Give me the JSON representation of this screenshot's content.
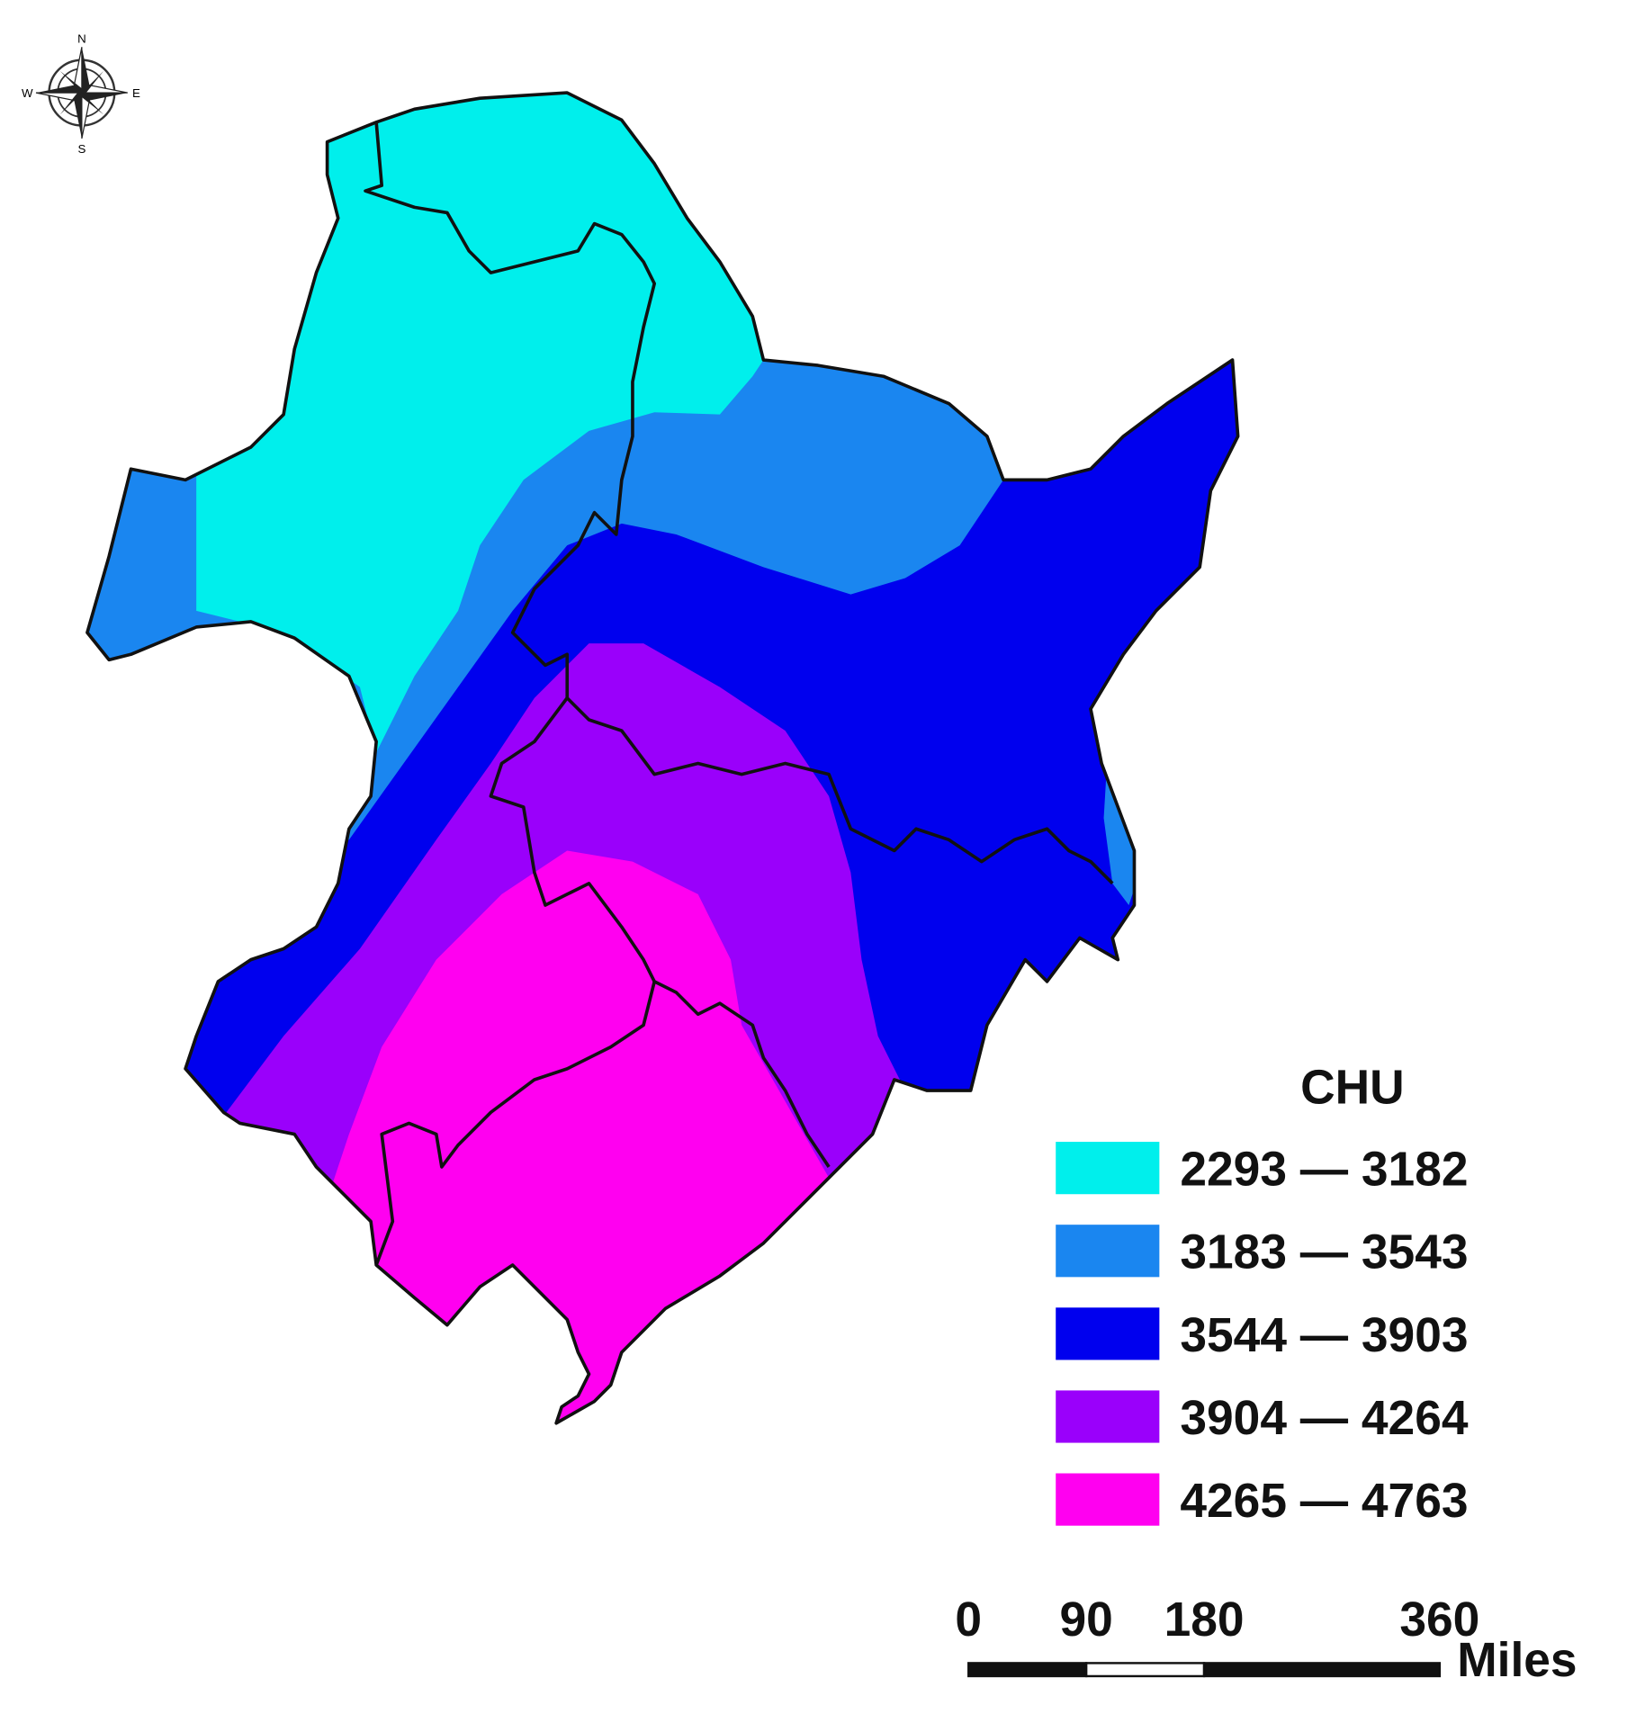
{
  "map": {
    "compass": {
      "north": "N",
      "south": "S",
      "east": "E",
      "west": "W"
    },
    "legend": {
      "title": "CHU",
      "items": [
        {
          "label": "2293 — 3182",
          "color": "#00efec"
        },
        {
          "label": "3183 — 3543",
          "color": "#1a86f0"
        },
        {
          "label": "3544 — 3903",
          "color": "#0000ee"
        },
        {
          "label": "3904 — 4264",
          "color": "#9a00fb"
        },
        {
          "label": "4265 — 4763",
          "color": "#ff00f0"
        }
      ]
    },
    "scale_bar": {
      "ticks": [
        0,
        90,
        180,
        360
      ],
      "unit": "Miles"
    }
  }
}
